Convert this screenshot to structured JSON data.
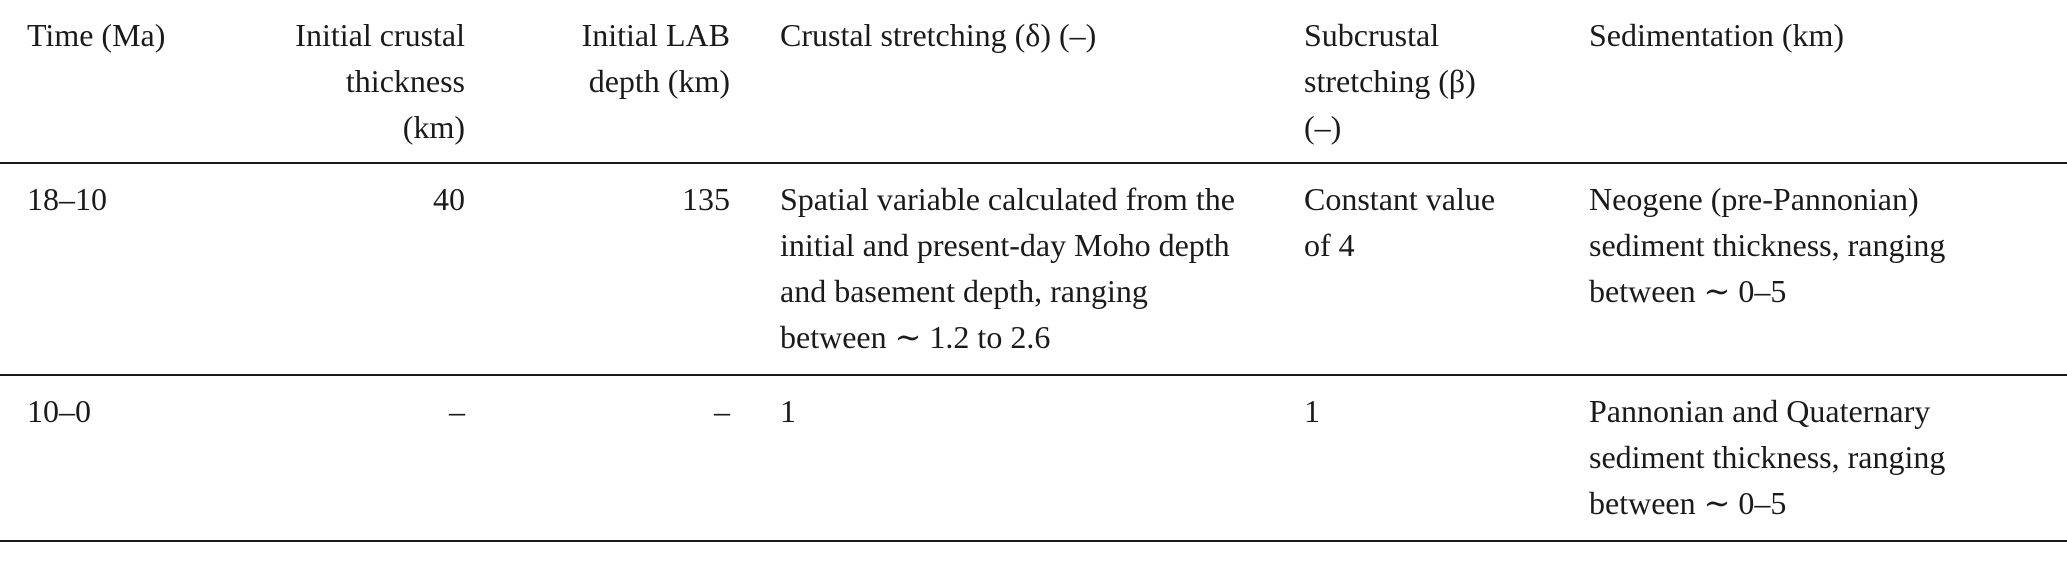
{
  "table": {
    "headers": [
      "Time (Ma)",
      "Initial crustal thickness (km)",
      "Initial LAB depth (km)",
      "Crustal stretching (δ) (–)",
      "Subcrustal stretching (β) (–)",
      "Sedimentation (km)"
    ],
    "rows": [
      {
        "time": "18–10",
        "crustal_thickness": "40",
        "lab_depth": "135",
        "crustal_stretching": "Spatial variable calculated from the initial and present-day Moho depth and basement depth, ranging between ∼ 1.2 to 2.6",
        "subcrustal_stretching": "Constant value of 4",
        "sedimentation": "Neogene (pre-Pannonian) sediment thickness, ranging between ∼ 0–5"
      },
      {
        "time": "10–0",
        "crustal_thickness": "–",
        "lab_depth": "–",
        "crustal_stretching": "1",
        "subcrustal_stretching": "1",
        "sedimentation": "Pannonian and Quaternary sediment thickness, ranging between ∼ 0–5"
      }
    ]
  }
}
